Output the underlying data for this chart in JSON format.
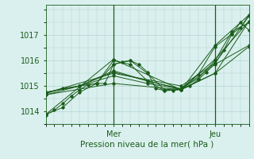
{
  "title": "",
  "xlabel": "Pression niveau de la mer( hPa )",
  "ylabel": "",
  "bg_color": "#daf0ee",
  "grid_color": "#aacfcc",
  "line_color": "#1a5c1a",
  "text_color": "#1a5c1a",
  "ylim": [
    1013.5,
    1018.2
  ],
  "xlim": [
    0,
    72
  ],
  "yticks": [
    1014,
    1015,
    1016,
    1017
  ],
  "xtick_positions": [
    24,
    60
  ],
  "xtick_labels": [
    "Mer",
    "Jeu"
  ],
  "vlines": [
    24,
    60
  ],
  "series": [
    [
      0,
      1013.85,
      3,
      1014.05,
      6,
      1014.3,
      9,
      1014.6,
      12,
      1014.85,
      15,
      1015.05,
      18,
      1015.1,
      21,
      1015.1,
      24,
      1015.85,
      27,
      1015.95,
      30,
      1016.0,
      33,
      1015.85,
      36,
      1015.55,
      39,
      1014.9,
      42,
      1014.82,
      45,
      1014.83,
      48,
      1014.88,
      51,
      1015.0,
      54,
      1015.25,
      57,
      1015.55,
      60,
      1015.9,
      63,
      1016.4,
      66,
      1017.05,
      69,
      1017.5,
      72,
      1017.2
    ],
    [
      0,
      1014.7,
      6,
      1014.9,
      12,
      1015.0,
      18,
      1015.1,
      24,
      1015.85,
      30,
      1016.0,
      36,
      1015.5,
      42,
      1014.85,
      48,
      1014.9,
      54,
      1015.3,
      60,
      1016.0,
      66,
      1017.15,
      72,
      1017.5
    ],
    [
      0,
      1014.75,
      12,
      1015.0,
      24,
      1015.6,
      36,
      1015.2,
      48,
      1014.88,
      60,
      1015.5,
      72,
      1016.55
    ],
    [
      0,
      1014.75,
      12,
      1015.0,
      24,
      1015.55,
      36,
      1015.2,
      48,
      1014.88,
      60,
      1016.05,
      72,
      1017.55
    ],
    [
      0,
      1014.65,
      12,
      1015.0,
      24,
      1015.4,
      36,
      1015.1,
      48,
      1014.88,
      60,
      1015.85,
      72,
      1016.6
    ],
    [
      0,
      1014.72,
      24,
      1015.5,
      48,
      1015.0,
      60,
      1015.9,
      72,
      1017.75
    ],
    [
      0,
      1014.65,
      24,
      1015.1,
      48,
      1014.85,
      60,
      1015.5,
      72,
      1017.55
    ],
    [
      0,
      1013.88,
      6,
      1014.15,
      12,
      1014.75,
      18,
      1015.1,
      24,
      1016.0,
      30,
      1015.85,
      36,
      1015.2,
      42,
      1014.82,
      48,
      1014.85,
      54,
      1015.45,
      60,
      1016.55,
      66,
      1017.05,
      69,
      1017.3,
      72,
      1017.8
    ],
    [
      0,
      1013.88,
      24,
      1016.05,
      48,
      1014.85,
      60,
      1016.6,
      72,
      1017.8
    ]
  ]
}
